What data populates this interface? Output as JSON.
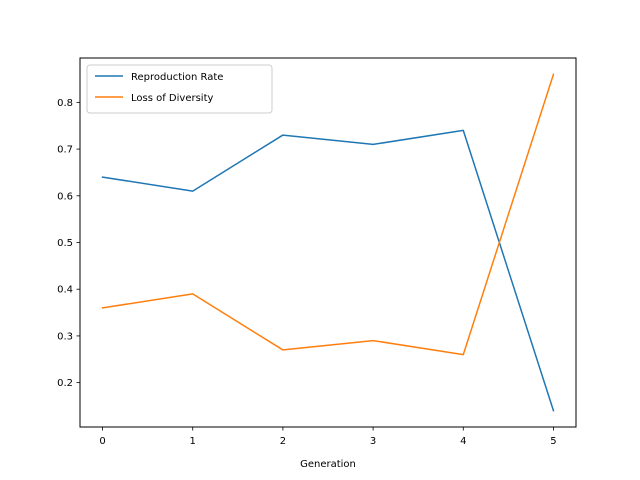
{
  "chart_data": {
    "type": "line",
    "title": "",
    "xlabel": "Generation",
    "ylabel": "",
    "x": [
      0,
      1,
      2,
      3,
      4,
      5
    ],
    "xlim": [
      -0.25,
      5.25
    ],
    "ylim": [
      0.105,
      0.895
    ],
    "xticks": [
      0,
      1,
      2,
      3,
      4,
      5
    ],
    "yticks": [
      0.2,
      0.3,
      0.4,
      0.5,
      0.6,
      0.7,
      0.8
    ],
    "grid": false,
    "legend_position": "top-left",
    "series": [
      {
        "name": "Reproduction Rate",
        "color": "#1f77b4",
        "values": [
          0.64,
          0.61,
          0.73,
          0.71,
          0.74,
          0.14
        ]
      },
      {
        "name": "Loss of Diversity",
        "color": "#ff7f0e",
        "values": [
          0.36,
          0.39,
          0.27,
          0.29,
          0.26,
          0.86
        ]
      }
    ]
  }
}
